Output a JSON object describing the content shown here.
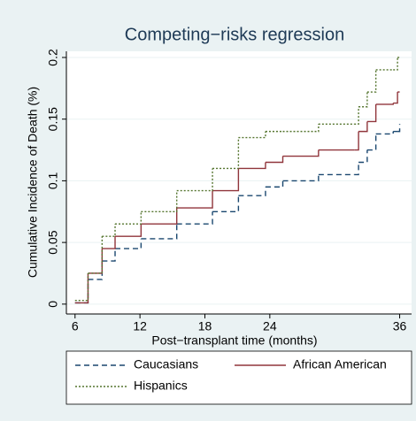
{
  "chart_data": {
    "type": "step",
    "title": "Competing−risks regression",
    "x_label": "Post−transplant time (months)",
    "y_label": "Cumulative Incidence of Death (%)",
    "x": [
      6,
      7.2,
      8.5,
      9.7,
      12.1,
      15.4,
      18.7,
      21.1,
      23.6,
      25.2,
      28.5,
      31.8,
      32.2,
      33.0,
      33.8,
      35.4,
      35.8,
      36
    ],
    "series": [
      {
        "name": "Caucasians",
        "color": "#1a476f",
        "dash": "6,4",
        "values": [
          0.001,
          0.02,
          0.035,
          0.045,
          0.053,
          0.065,
          0.075,
          0.088,
          0.095,
          0.1,
          0.105,
          0.105,
          0.115,
          0.125,
          0.138,
          0.14,
          0.14,
          0.146
        ]
      },
      {
        "name": "African American",
        "color": "#90353b",
        "dash": "none",
        "values": [
          0.001,
          0.025,
          0.045,
          0.055,
          0.065,
          0.078,
          0.092,
          0.11,
          0.115,
          0.12,
          0.125,
          0.125,
          0.14,
          0.148,
          0.162,
          0.163,
          0.172,
          0.172
        ]
      },
      {
        "name": "Hispanics",
        "color": "#55752f",
        "dash": "2,2",
        "values": [
          0.003,
          0.025,
          0.055,
          0.065,
          0.075,
          0.092,
          0.11,
          0.135,
          0.14,
          0.14,
          0.146,
          0.146,
          0.16,
          0.172,
          0.19,
          0.19,
          0.2,
          0.2
        ]
      }
    ],
    "xlim": [
      5.2,
      37.1
    ],
    "xticks": [
      6,
      12,
      18,
      24,
      36
    ],
    "ylim": [
      -0.008,
      0.205
    ],
    "yticks": [
      0,
      0.05,
      0.1,
      0.15,
      0.2
    ],
    "grid": true
  }
}
